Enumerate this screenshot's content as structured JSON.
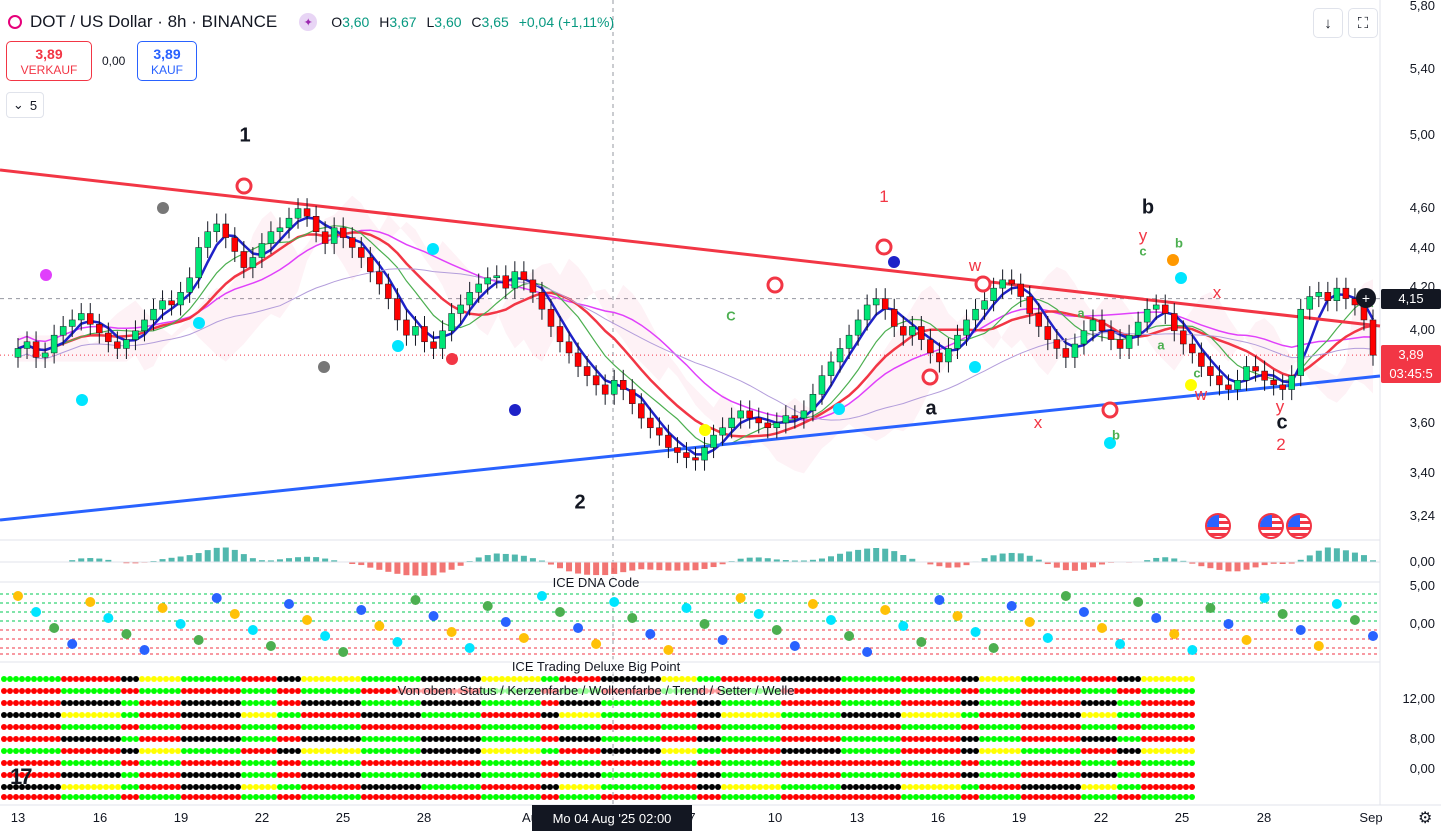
{
  "header": {
    "symbol": "DOT / US Dollar · 8h · BINANCE",
    "ohlc": [
      {
        "k": "O",
        "v": "3,60"
      },
      {
        "k": "H",
        "v": "3,67"
      },
      {
        "k": "L",
        "v": "3,60"
      },
      {
        "k": "C",
        "v": "3,65"
      }
    ],
    "change": "+0,04 (+1,11%)"
  },
  "trade": {
    "sell_price": "3,89",
    "sell_label": "VERKAUF",
    "spread": "0,00",
    "buy_price": "3,89",
    "buy_label": "KAUF"
  },
  "levels_button": "5",
  "price_axis": {
    "ticks": [
      "5,80",
      "5,40",
      "5,00",
      "4,60",
      "4,40",
      "4,20",
      "4,00",
      "3,60",
      "3,40",
      "3,24"
    ],
    "current_price": "3,89",
    "countdown": "03:45:5",
    "crosshair_price": "4,15",
    "osc_ticks": [
      "0,00"
    ],
    "dna_ticks": [
      "5,00",
      "0,00"
    ],
    "big_ticks": [
      "12,00",
      "8,00",
      "0,00"
    ]
  },
  "time_axis": {
    "ticks": [
      "13",
      "16",
      "19",
      "22",
      "25",
      "28",
      "Au",
      "7",
      "10",
      "13",
      "16",
      "19",
      "22",
      "25",
      "28",
      "Sep"
    ],
    "crosshair": "Mo 04 Aug '25   02:00"
  },
  "waves": [
    {
      "t": "1",
      "c": "black"
    },
    {
      "t": "2",
      "c": "black"
    },
    {
      "t": "a",
      "c": "black"
    },
    {
      "t": "b",
      "c": "black"
    },
    {
      "t": "c",
      "c": "black"
    },
    {
      "t": "1",
      "c": "red"
    },
    {
      "t": "w",
      "c": "red"
    },
    {
      "t": "x",
      "c": "red"
    },
    {
      "t": "y",
      "c": "red"
    },
    {
      "t": "w",
      "c": "red"
    },
    {
      "t": "x",
      "c": "red"
    },
    {
      "t": "y",
      "c": "red"
    },
    {
      "t": "2",
      "c": "red"
    },
    {
      "t": "a",
      "c": "green"
    },
    {
      "t": "a",
      "c": "green"
    },
    {
      "t": "b",
      "c": "green"
    },
    {
      "t": "c",
      "c": "green"
    },
    {
      "t": "b",
      "c": "green"
    },
    {
      "t": "c",
      "c": "green"
    },
    {
      "t": "C",
      "c": "green"
    }
  ],
  "panels": {
    "dna_title": "ICE DNA Code",
    "big_title": "ICE Trading Deluxe Big Point",
    "big_subtitle": "Von oben: Status / Kerzenfarbe / Wolkenfarbe / Trend / Setter / Welle"
  },
  "colors": {
    "up": "#22ab94",
    "down": "#f23645",
    "upper_trend": "#f23645",
    "lower_trend": "#2962ff"
  },
  "chart_data": {
    "type": "candlestick",
    "symbol": "DOT / US Dollar",
    "timeframe": "8h",
    "exchange": "BINANCE",
    "ylim": [
      3.1,
      5.9
    ],
    "y_scale": "log",
    "start_date": "2025-07-13",
    "bars_per_day": 3,
    "close": [
      3.92,
      3.95,
      3.88,
      3.9,
      3.98,
      4.02,
      4.05,
      4.08,
      4.03,
      3.99,
      3.95,
      3.92,
      3.96,
      4.0,
      4.05,
      4.1,
      4.14,
      4.12,
      4.18,
      4.25,
      4.4,
      4.48,
      4.52,
      4.45,
      4.38,
      4.3,
      4.35,
      4.42,
      4.48,
      4.5,
      4.55,
      4.6,
      4.56,
      4.48,
      4.42,
      4.5,
      4.45,
      4.4,
      4.35,
      4.28,
      4.22,
      4.15,
      4.05,
      3.98,
      4.02,
      3.95,
      3.92,
      4.0,
      4.08,
      4.12,
      4.18,
      4.22,
      4.25,
      4.26,
      4.2,
      4.28,
      4.24,
      4.18,
      4.1,
      4.02,
      3.95,
      3.9,
      3.84,
      3.8,
      3.76,
      3.72,
      3.78,
      3.74,
      3.68,
      3.62,
      3.58,
      3.55,
      3.5,
      3.48,
      3.46,
      3.45,
      3.5,
      3.55,
      3.58,
      3.62,
      3.65,
      3.62,
      3.6,
      3.58,
      3.6,
      3.63,
      3.62,
      3.65,
      3.72,
      3.8,
      3.86,
      3.92,
      3.98,
      4.05,
      4.12,
      4.15,
      4.1,
      4.02,
      3.98,
      4.02,
      3.96,
      3.9,
      3.86,
      3.92,
      3.98,
      4.05,
      4.1,
      4.14,
      4.2,
      4.24,
      4.22,
      4.16,
      4.08,
      4.02,
      3.96,
      3.92,
      3.88,
      3.94,
      4.0,
      4.05,
      4.0,
      3.96,
      3.92,
      3.98,
      4.04,
      4.1,
      4.12,
      4.08,
      4.0,
      3.94,
      3.9,
      3.84,
      3.8,
      3.76,
      3.74,
      3.78,
      3.84,
      3.82,
      3.78,
      3.76,
      3.74,
      3.8,
      4.1,
      4.16,
      4.18,
      4.14,
      4.2,
      4.15,
      4.12,
      4.05,
      3.89
    ],
    "annotations": [
      "1",
      "2",
      "a",
      "b",
      "c",
      "1",
      "w",
      "x",
      "y",
      "2"
    ]
  }
}
